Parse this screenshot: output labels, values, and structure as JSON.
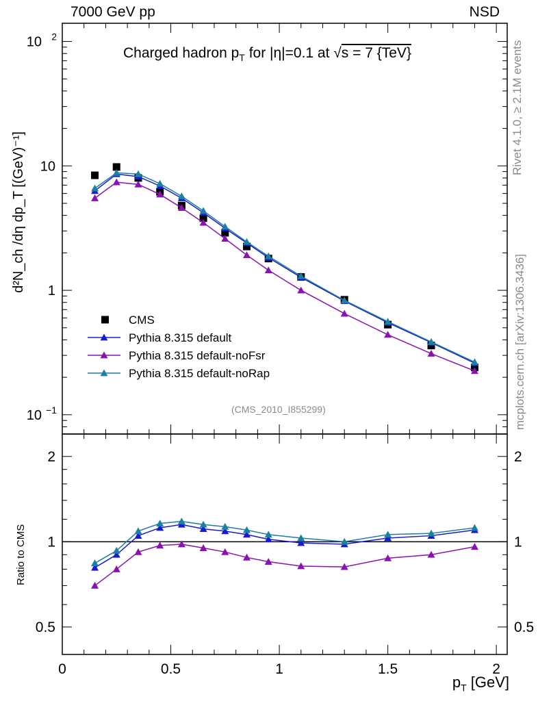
{
  "header": {
    "energy": "7000 GeV pp",
    "process": "NSD"
  },
  "side_labels": {
    "rivet": "Rivet 4.1.0, ≥ 2.1M events",
    "mcplots": "mcplots.cern.ch [arXiv:1306.3436]"
  },
  "watermark": "(CMS_2010_I855299)",
  "chart_data": [
    {
      "type": "scatter",
      "panel": "main",
      "title": "Charged hadron p_T for |η|=0.1 at √s = 7 {TeV}",
      "title_parts": {
        "a": "Charged hadron p",
        "sub": "T",
        "b": " for |η|=0.1 at ",
        "sqrt": "√",
        "c": "s = 7 {TeV}"
      },
      "ylabel": "d²N_ch /dη dp_T [(GeV)⁻¹]",
      "yscale": "log",
      "ylim": [
        0.07,
        140
      ],
      "xlim": [
        0,
        2.05
      ],
      "y_ticks": [
        {
          "value": 0.1,
          "base": "10",
          "exp": "−1"
        },
        {
          "value": 1,
          "base": "1",
          "exp": ""
        },
        {
          "value": 10,
          "base": "10",
          "exp": ""
        },
        {
          "value": 100,
          "base": "10",
          "exp": "2"
        }
      ],
      "legend": {
        "placement": "lower-left",
        "labels": [
          "CMS",
          "Pythia 8.315 default",
          "Pythia 8.315 default-noFsr",
          "Pythia 8.315 default-noRap"
        ]
      },
      "x": [
        0.15,
        0.25,
        0.35,
        0.45,
        0.55,
        0.65,
        0.75,
        0.85,
        0.95,
        1.1,
        1.3,
        1.5,
        1.7,
        1.9
      ],
      "series": [
        {
          "name": "CMS",
          "color": "#000000",
          "marker": "square",
          "values": [
            8.4,
            9.8,
            8.0,
            6.2,
            4.8,
            3.8,
            2.9,
            2.25,
            1.8,
            1.28,
            0.84,
            0.53,
            0.36,
            0.24
          ]
        },
        {
          "name": "Pythia 8.315 default",
          "color": "#1a1ad0",
          "marker": "triangle",
          "values": [
            6.3,
            8.6,
            8.2,
            6.9,
            5.5,
            4.2,
            3.15,
            2.4,
            1.83,
            1.27,
            0.82,
            0.55,
            0.38,
            0.26
          ]
        },
        {
          "name": "Pythia 8.315 default-noFsr",
          "color": "#8a12b0",
          "marker": "triangle",
          "values": [
            5.5,
            7.4,
            7.1,
            5.9,
            4.6,
            3.5,
            2.6,
            1.92,
            1.45,
            1.0,
            0.65,
            0.44,
            0.31,
            0.225
          ]
        },
        {
          "name": "Pythia 8.315 default-noRap",
          "color": "#1a7fa0",
          "marker": "triangle",
          "values": [
            6.6,
            8.8,
            8.6,
            7.2,
            5.7,
            4.35,
            3.25,
            2.45,
            1.88,
            1.3,
            0.83,
            0.56,
            0.385,
            0.265
          ]
        }
      ]
    },
    {
      "type": "line",
      "panel": "ratio",
      "ylabel": "Ratio to CMS",
      "xlabel": "p_T [GeV]",
      "xlabel_parts": {
        "a": "p",
        "sub": "T",
        "b": " [GeV]"
      },
      "yscale": "log",
      "ylim": [
        0.4,
        2.4
      ],
      "xlim": [
        0,
        2.05
      ],
      "x_ticks": [
        "0",
        "0.5",
        "1",
        "1.5",
        "2"
      ],
      "y_ticks": [
        "0.5",
        "1",
        "2"
      ],
      "reference": 1,
      "x": [
        0.15,
        0.25,
        0.35,
        0.45,
        0.55,
        0.65,
        0.75,
        0.85,
        0.95,
        1.1,
        1.3,
        1.5,
        1.7,
        1.9
      ],
      "series": [
        {
          "name": "Pythia 8.315 default",
          "color": "#1a1ad0",
          "values": [
            0.81,
            0.9,
            1.05,
            1.12,
            1.15,
            1.11,
            1.09,
            1.06,
            1.02,
            0.99,
            0.98,
            1.03,
            1.05,
            1.1
          ]
        },
        {
          "name": "Pythia 8.315 default-noFsr",
          "color": "#8a12b0",
          "values": [
            0.7,
            0.8,
            0.92,
            0.97,
            0.98,
            0.95,
            0.92,
            0.88,
            0.85,
            0.82,
            0.815,
            0.875,
            0.9,
            0.96
          ]
        },
        {
          "name": "Pythia 8.315 default-noRap",
          "color": "#1a7fa0",
          "values": [
            0.84,
            0.93,
            1.09,
            1.16,
            1.18,
            1.15,
            1.13,
            1.1,
            1.06,
            1.03,
            1.0,
            1.06,
            1.07,
            1.12
          ]
        }
      ]
    }
  ]
}
